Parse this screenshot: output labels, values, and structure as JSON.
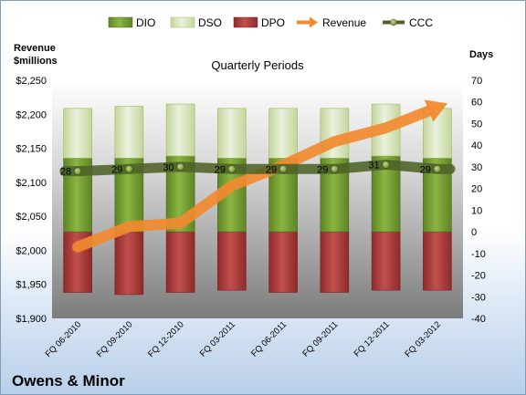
{
  "chart_data": {
    "type": "bar",
    "title": "Quarterly Periods",
    "left_axis_label": [
      "Revenue",
      "$millions"
    ],
    "right_axis_label": "Days",
    "company": "Owens & Minor",
    "categories": [
      "FQ 06-2010",
      "FQ 09-2010",
      "FQ 12-2010",
      "FQ 03-2011",
      "FQ 06-2011",
      "FQ 09-2011",
      "FQ 12-2011",
      "FQ 03-2012"
    ],
    "left_axis": {
      "min": 1900,
      "max": 2250,
      "step": 50,
      "tick_labels": [
        "$1,900",
        "$1,950",
        "$2,000",
        "$2,050",
        "$2,100",
        "$2,150",
        "$2,200",
        "$2,250"
      ]
    },
    "right_axis": {
      "min": -40,
      "max": 70,
      "step": 10,
      "tick_labels": [
        "-40",
        "-30",
        "-20",
        "-10",
        "0",
        "10",
        "20",
        "30",
        "40",
        "50",
        "60",
        "70"
      ]
    },
    "series": [
      {
        "name": "DIO",
        "axis": "right",
        "kind": "stacked-bar",
        "color": "#77a033",
        "values": [
          34,
          34,
          35,
          34,
          34,
          34,
          35,
          34
        ]
      },
      {
        "name": "DSO",
        "axis": "right",
        "kind": "stacked-bar",
        "color": "#d7e4bd",
        "values": [
          23,
          24,
          24,
          23,
          23,
          23,
          24,
          23
        ]
      },
      {
        "name": "DPO",
        "axis": "right",
        "kind": "negative-bar",
        "color": "#b7393d",
        "values": [
          -28,
          -29,
          -28,
          -27,
          -28,
          -28,
          -27,
          -27
        ]
      },
      {
        "name": "Revenue",
        "axis": "left",
        "kind": "trend-arrow",
        "color": "#f28a30",
        "values": [
          2005,
          2035,
          2040,
          2095,
          2125,
          2160,
          2180,
          2210
        ]
      },
      {
        "name": "CCC",
        "axis": "right",
        "kind": "line",
        "color": "#4f6228",
        "values": [
          28,
          29,
          30,
          29,
          29,
          29,
          31,
          29
        ],
        "data_labels": [
          "28",
          "29",
          "30",
          "29",
          "29",
          "29",
          "31",
          "29"
        ]
      }
    ],
    "legend": [
      "DIO",
      "DSO",
      "DPO",
      "Revenue",
      "CCC"
    ],
    "legend_position": "top",
    "grid": false
  }
}
